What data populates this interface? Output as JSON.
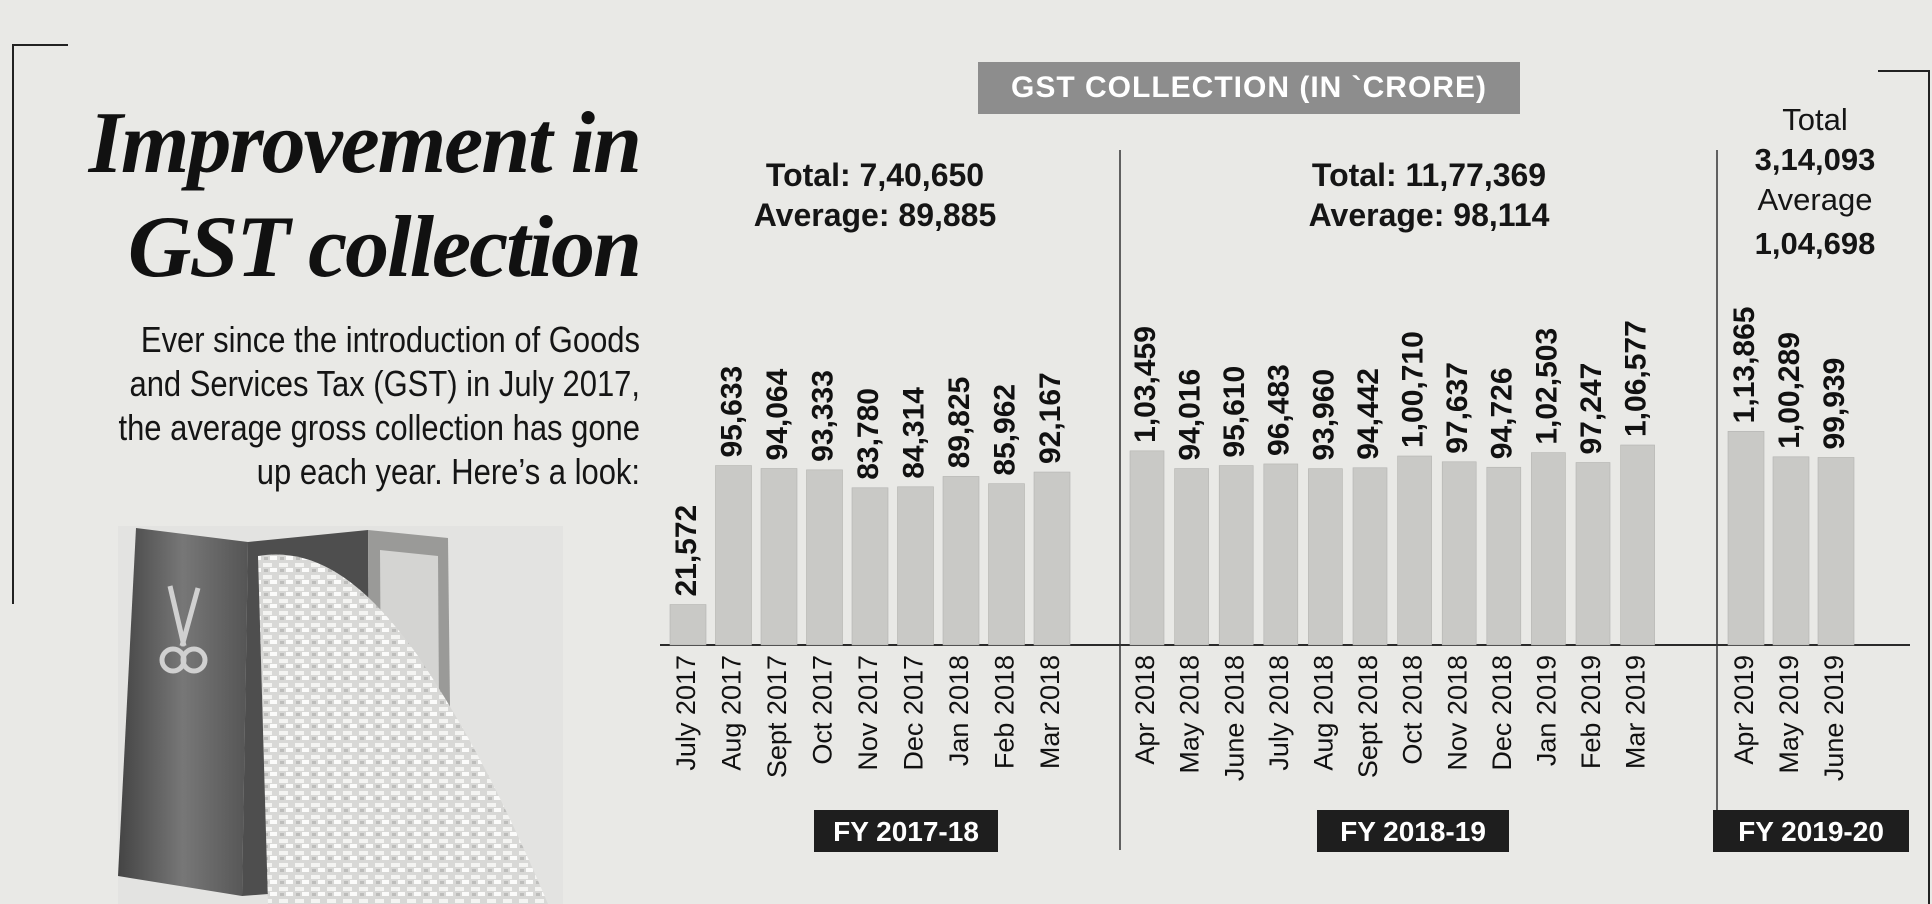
{
  "headline": [
    "Improvement in",
    "GST collection"
  ],
  "dek": [
    "Ever since the introduction of Goods",
    "and Services Tax (GST) in July 2017,",
    "the average gross collection has gone",
    "up each year. Here’s a look:"
  ],
  "chart_data": {
    "type": "bar",
    "title": "GST COLLECTION (IN `CRORE)",
    "values_units": "crore",
    "groups": [
      {
        "label": "FY 2017-18",
        "summary": [
          "Total: 7,40,650",
          "Average: 89,885"
        ],
        "categories": [
          "July 2017",
          "Aug 2017",
          "Sept 2017",
          "Oct 2017",
          "Nov 2017",
          "Dec 2017",
          "Jan 2018",
          "Feb 2018",
          "Mar 2018"
        ],
        "values": [
          21572,
          95633,
          94064,
          93333,
          83780,
          84314,
          89825,
          85962,
          92167
        ],
        "value_labels": [
          "21,572",
          "95,633",
          "94,064",
          "93,333",
          "83,780",
          "84,314",
          "89,825",
          "85,962",
          "92,167"
        ]
      },
      {
        "label": "FY 2018-19",
        "summary": [
          "Total: 11,77,369",
          "Average: 98,114"
        ],
        "categories": [
          "Apr 2018",
          "May 2018",
          "June 2018",
          "July 2018",
          "Aug 2018",
          "Sept 2018",
          "Oct 2018",
          "Nov 2018",
          "Dec 2018",
          "Jan 2019",
          "Feb 2019",
          "Mar 2019"
        ],
        "values": [
          103459,
          94016,
          95610,
          96483,
          93960,
          94442,
          100710,
          97637,
          94726,
          102503,
          97247,
          106577
        ],
        "value_labels": [
          "1,03,459",
          "94,016",
          "95,610",
          "96,483",
          "93,960",
          "94,442",
          "1,00,710",
          "97,637",
          "94,726",
          "1,02,503",
          "97,247",
          "1,06,577"
        ]
      },
      {
        "label": "FY 2019-20",
        "summary": [
          "Total",
          "3,14,093",
          "Average",
          "1,04,698"
        ],
        "categories": [
          "Apr 2019",
          "May 2019",
          "June 2019"
        ],
        "values": [
          113865,
          100289,
          99939
        ],
        "value_labels": [
          "1,13,865",
          "1,00,289",
          "99,939"
        ]
      }
    ],
    "bar_color": "#c9c9c6",
    "label_bg_color": "#1e1e1e"
  }
}
